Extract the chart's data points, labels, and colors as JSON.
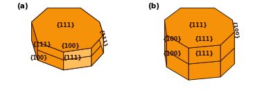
{
  "bg_color": "#ffffff",
  "orange_top": "#F5920A",
  "orange_side_light": "#FFBE5C",
  "orange_side_mid": "#F5920A",
  "orange_side_dark": "#E07800",
  "edge_color": "#3A1800",
  "label_color": "#2A0E00",
  "label_a": "(a)",
  "label_b": "(b)",
  "font_size_label": 7.5,
  "font_size_face": 5.8
}
